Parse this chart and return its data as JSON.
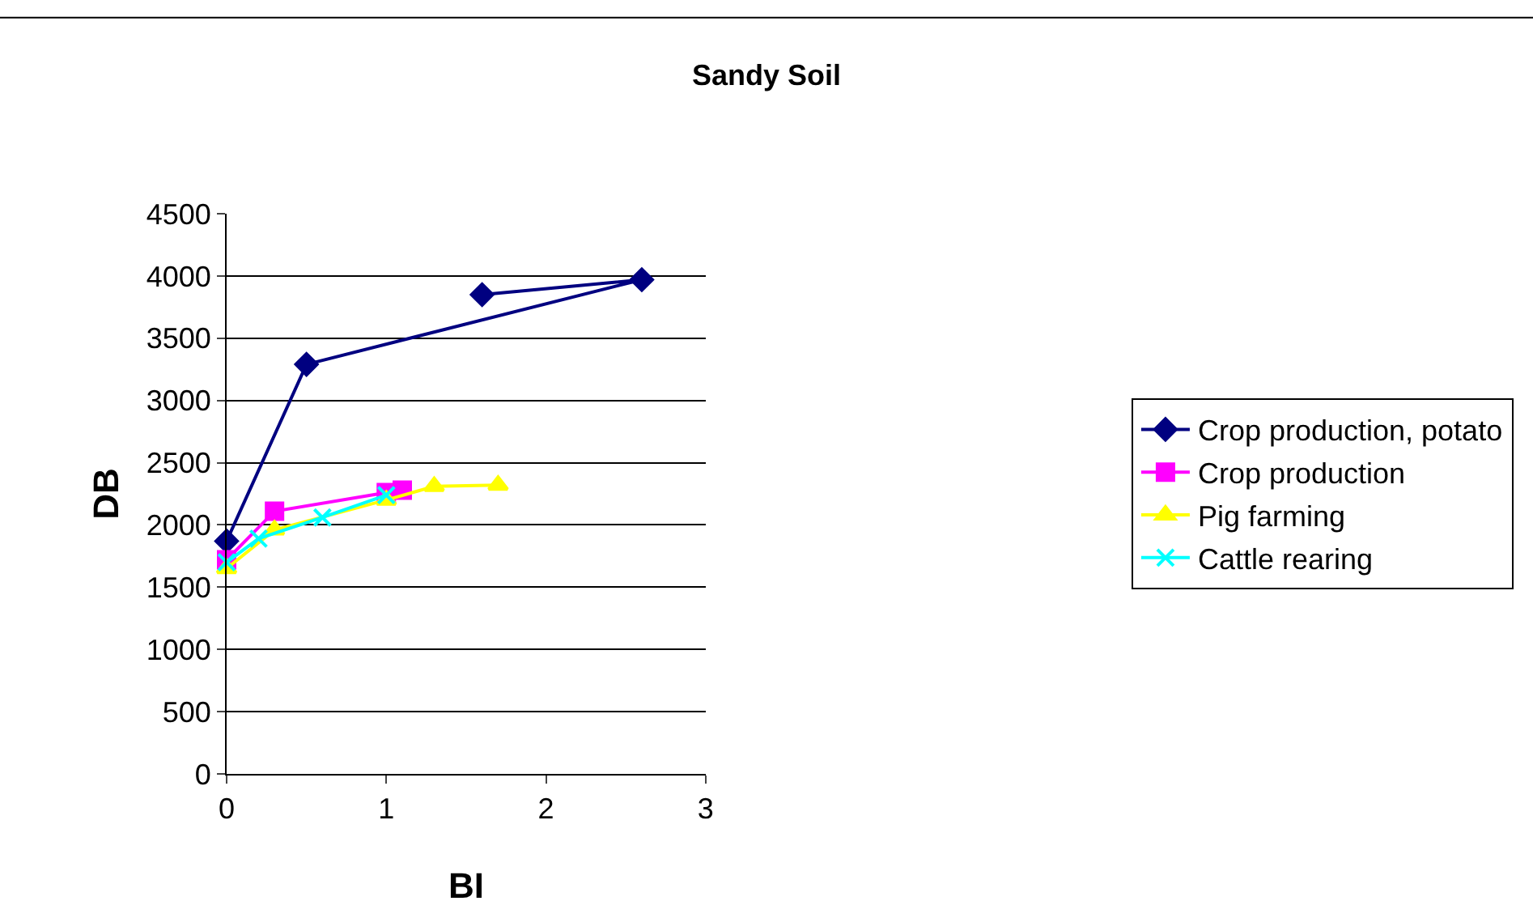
{
  "chart_data": {
    "type": "line",
    "title": "Sandy Soil",
    "xlabel": "BI",
    "ylabel": "DB",
    "series": [
      {
        "name": "Crop production, potato",
        "color": "#000080",
        "marker": "diamond",
        "x": [
          0,
          0.5,
          2.6,
          1.6
        ],
        "values": [
          1870,
          3290,
          3970,
          3850
        ]
      },
      {
        "name": "Crop production",
        "color": "#ff00ff",
        "marker": "square",
        "x": [
          0,
          0.3,
          1.0,
          1.1
        ],
        "values": [
          1720,
          2110,
          2260,
          2280
        ]
      },
      {
        "name": "Pig farming",
        "color": "#ffff00",
        "marker": "triangle",
        "x": [
          0,
          0.3,
          1.0,
          1.3,
          1.7
        ],
        "values": [
          1650,
          1960,
          2200,
          2310,
          2320
        ]
      },
      {
        "name": "Cattle rearing",
        "color": "#00ffff",
        "marker": "cross",
        "x": [
          0,
          0.2,
          0.6,
          1.0
        ],
        "values": [
          1700,
          1890,
          2060,
          2240
        ]
      }
    ],
    "xlim": [
      0,
      3
    ],
    "xticks": [
      0,
      1,
      2,
      3
    ],
    "ylim": [
      0,
      4500
    ],
    "yticks": [
      0,
      500,
      1000,
      1500,
      2000,
      2500,
      3000,
      3500,
      4000,
      4500
    ],
    "grid": "y",
    "legend": "right"
  }
}
